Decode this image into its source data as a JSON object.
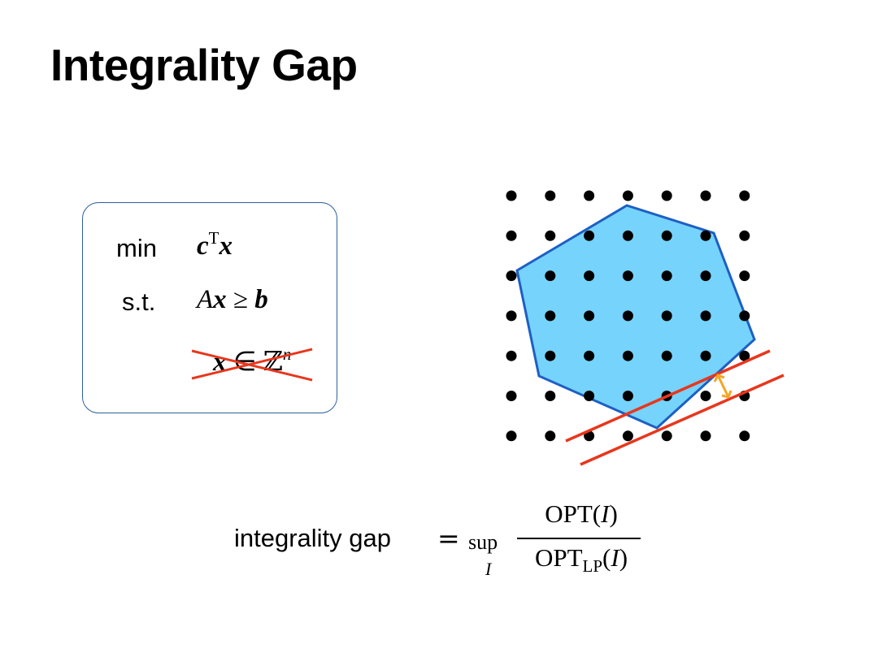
{
  "slide": {
    "title": "Integrality Gap"
  },
  "lp_box": {
    "objective_keyword": "min",
    "objective_c": "c",
    "objective_T": "T",
    "objective_x": "x",
    "constraint_keyword": "s.t.",
    "constraint_A": "A",
    "constraint_x": "x",
    "constraint_rel": "≥",
    "constraint_b": "b",
    "integrality_x": "x",
    "integrality_in": "∈",
    "integrality_Z": "ℤ",
    "integrality_n": "n"
  },
  "formula": {
    "label": "integrality gap",
    "equals": "=",
    "operator": "sup",
    "operator_sub": "I",
    "numerator_opt": "OPT(",
    "numerator_I": "I",
    "numerator_close": ")",
    "denominator_opt": "OPT",
    "denominator_sub": "LP",
    "denominator_open": "(",
    "denominator_I": "I",
    "denominator_close": ")"
  },
  "colors": {
    "polytope_fill": "#76d3fb",
    "polytope_stroke": "#1d5fc4",
    "cut_lines": "#e8361c",
    "gap_arrow": "#f5a623",
    "strike": "#e8361c",
    "box_border": "#2b5f9e"
  }
}
